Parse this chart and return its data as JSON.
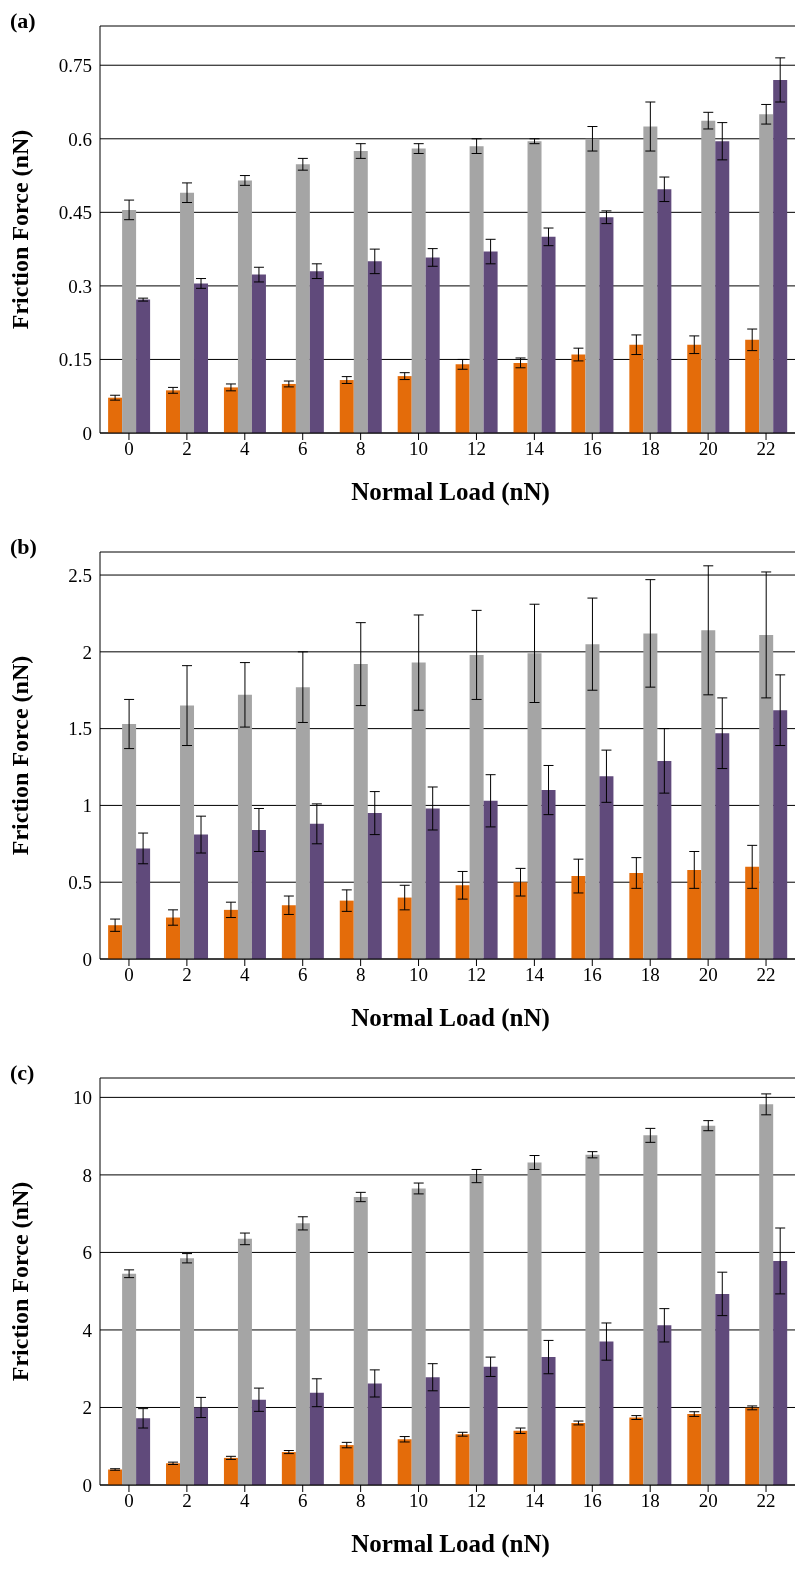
{
  "chart_data": [
    {
      "type": "bar",
      "title": "(a)",
      "xlabel": "Normal Load (nN)",
      "ylabel": "Friction Force (nN)",
      "categories": [
        "0",
        "2",
        "4",
        "6",
        "8",
        "10",
        "12",
        "14",
        "16",
        "18",
        "20",
        "22"
      ],
      "ylim": [
        0,
        0.83
      ],
      "yticks": [
        0,
        0.15,
        0.3,
        0.45,
        0.6,
        0.75
      ],
      "grid": "y",
      "legend": false,
      "series": [
        {
          "color": "#e46c0a",
          "values": [
            0.072,
            0.087,
            0.093,
            0.1,
            0.108,
            0.116,
            0.14,
            0.143,
            0.16,
            0.18,
            0.18,
            0.19
          ],
          "errors": [
            0.005,
            0.006,
            0.007,
            0.006,
            0.007,
            0.007,
            0.01,
            0.01,
            0.013,
            0.02,
            0.018,
            0.022
          ]
        },
        {
          "color": "#a5a5a5",
          "values": [
            0.455,
            0.49,
            0.515,
            0.548,
            0.575,
            0.58,
            0.585,
            0.595,
            0.6,
            0.625,
            0.637,
            0.65
          ],
          "errors": [
            0.02,
            0.02,
            0.01,
            0.012,
            0.015,
            0.01,
            0.015,
            0.005,
            0.025,
            0.05,
            0.017,
            0.02
          ]
        },
        {
          "color": "#604a7b",
          "values": [
            0.272,
            0.305,
            0.323,
            0.33,
            0.35,
            0.358,
            0.37,
            0.4,
            0.44,
            0.497,
            0.595,
            0.72
          ],
          "errors": [
            0.003,
            0.01,
            0.015,
            0.015,
            0.025,
            0.018,
            0.025,
            0.018,
            0.013,
            0.025,
            0.038,
            0.045
          ]
        }
      ]
    },
    {
      "type": "bar",
      "title": "(b)",
      "xlabel": "Normal Load (nN)",
      "ylabel": "Friction Force (nN)",
      "categories": [
        "0",
        "2",
        "4",
        "6",
        "8",
        "10",
        "12",
        "14",
        "16",
        "18",
        "20",
        "22"
      ],
      "ylim": [
        0,
        2.65
      ],
      "yticks": [
        0,
        0.5,
        1,
        1.5,
        2,
        2.5
      ],
      "grid": "y",
      "legend": false,
      "series": [
        {
          "color": "#e46c0a",
          "values": [
            0.22,
            0.27,
            0.32,
            0.35,
            0.38,
            0.4,
            0.48,
            0.5,
            0.54,
            0.56,
            0.58,
            0.6
          ],
          "errors": [
            0.04,
            0.05,
            0.05,
            0.06,
            0.07,
            0.08,
            0.09,
            0.09,
            0.11,
            0.1,
            0.12,
            0.14
          ]
        },
        {
          "color": "#a5a5a5",
          "values": [
            1.53,
            1.65,
            1.72,
            1.77,
            1.92,
            1.93,
            1.98,
            1.99,
            2.05,
            2.12,
            2.14,
            2.11
          ],
          "errors": [
            0.16,
            0.26,
            0.21,
            0.23,
            0.27,
            0.31,
            0.29,
            0.32,
            0.3,
            0.35,
            0.42,
            0.41
          ]
        },
        {
          "color": "#604a7b",
          "values": [
            0.72,
            0.81,
            0.84,
            0.88,
            0.95,
            0.98,
            1.03,
            1.1,
            1.19,
            1.29,
            1.47,
            1.62
          ],
          "errors": [
            0.1,
            0.12,
            0.14,
            0.13,
            0.14,
            0.14,
            0.17,
            0.16,
            0.17,
            0.21,
            0.23,
            0.23
          ]
        }
      ]
    },
    {
      "type": "bar",
      "title": "(c)",
      "xlabel": "Normal Load (nN)",
      "ylabel": "Friction Force (nN)",
      "categories": [
        "0",
        "2",
        "4",
        "6",
        "8",
        "10",
        "12",
        "14",
        "16",
        "18",
        "20",
        "22"
      ],
      "ylim": [
        0,
        10.5
      ],
      "yticks": [
        0,
        2,
        4,
        6,
        8,
        10
      ],
      "grid": "y",
      "legend": false,
      "series": [
        {
          "color": "#e46c0a",
          "values": [
            0.4,
            0.56,
            0.7,
            0.85,
            1.03,
            1.18,
            1.31,
            1.4,
            1.6,
            1.74,
            1.83,
            1.99
          ],
          "errors": [
            0.02,
            0.03,
            0.04,
            0.04,
            0.07,
            0.07,
            0.05,
            0.07,
            0.05,
            0.05,
            0.06,
            0.05
          ]
        },
        {
          "color": "#a5a5a5",
          "values": [
            5.45,
            5.85,
            6.35,
            6.75,
            7.43,
            7.65,
            7.97,
            8.32,
            8.52,
            9.02,
            9.27,
            9.82
          ],
          "errors": [
            0.1,
            0.12,
            0.15,
            0.17,
            0.12,
            0.14,
            0.17,
            0.18,
            0.08,
            0.18,
            0.13,
            0.27
          ]
        },
        {
          "color": "#604a7b",
          "values": [
            1.72,
            2.0,
            2.2,
            2.38,
            2.62,
            2.78,
            3.05,
            3.3,
            3.7,
            4.12,
            4.93,
            5.78
          ],
          "errors": [
            0.25,
            0.26,
            0.3,
            0.36,
            0.35,
            0.35,
            0.25,
            0.43,
            0.48,
            0.43,
            0.56,
            0.85
          ]
        }
      ]
    }
  ]
}
